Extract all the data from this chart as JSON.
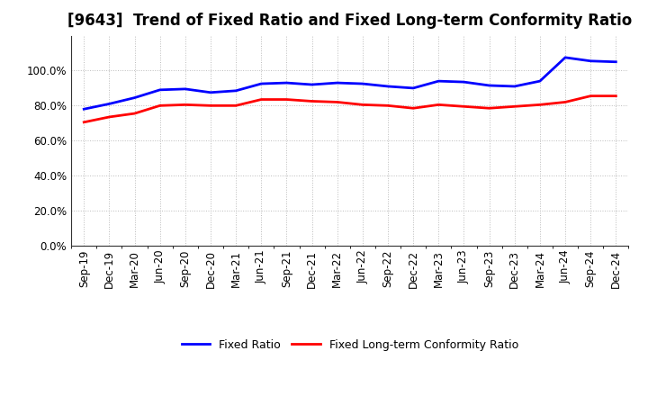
{
  "title": "[9643]  Trend of Fixed Ratio and Fixed Long-term Conformity Ratio",
  "x_labels": [
    "Sep-19",
    "Dec-19",
    "Mar-20",
    "Jun-20",
    "Sep-20",
    "Dec-20",
    "Mar-21",
    "Jun-21",
    "Sep-21",
    "Dec-21",
    "Mar-22",
    "Jun-22",
    "Sep-22",
    "Dec-22",
    "Mar-23",
    "Jun-23",
    "Sep-23",
    "Dec-23",
    "Mar-24",
    "Jun-24",
    "Sep-24",
    "Dec-24"
  ],
  "fixed_ratio": [
    78.0,
    81.0,
    84.5,
    89.0,
    89.5,
    87.5,
    88.5,
    92.5,
    93.0,
    92.0,
    93.0,
    92.5,
    91.0,
    90.0,
    94.0,
    93.5,
    91.5,
    91.0,
    94.0,
    107.5,
    105.5,
    105.0
  ],
  "fixed_lt_ratio": [
    70.5,
    73.5,
    75.5,
    80.0,
    80.5,
    80.0,
    80.0,
    83.5,
    83.5,
    82.5,
    82.0,
    80.5,
    80.0,
    78.5,
    80.5,
    79.5,
    78.5,
    79.5,
    80.5,
    82.0,
    85.5,
    85.5
  ],
  "fixed_ratio_color": "#0000ff",
  "fixed_lt_ratio_color": "#ff0000",
  "ylim": [
    0,
    120
  ],
  "yticks": [
    0,
    20,
    40,
    60,
    80,
    100
  ],
  "background_color": "#ffffff",
  "grid_color": "#bbbbbb",
  "line_width": 2.0,
  "title_fontsize": 12,
  "tick_fontsize": 8.5,
  "legend_fontsize": 9
}
